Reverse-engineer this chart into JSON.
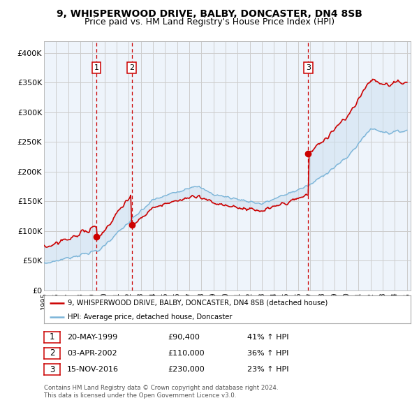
{
  "title": "9, WHISPERWOOD DRIVE, BALBY, DONCASTER, DN4 8SB",
  "subtitle": "Price paid vs. HM Land Registry's House Price Index (HPI)",
  "title_fontsize": 10,
  "subtitle_fontsize": 9,
  "ylim": [
    0,
    420000
  ],
  "yticks": [
    0,
    50000,
    100000,
    150000,
    200000,
    250000,
    300000,
    350000,
    400000
  ],
  "ytick_labels": [
    "£0",
    "£50K",
    "£100K",
    "£150K",
    "£200K",
    "£250K",
    "£300K",
    "£350K",
    "£400K"
  ],
  "hpi_line_color": "#7ab4d8",
  "price_line_color": "#cc0000",
  "sale_marker_color": "#cc0000",
  "vline_color": "#cc0000",
  "shade_color": "#cce0f0",
  "grid_color": "#cccccc",
  "bg_color": "#eef4fb",
  "sale1_date": "20-MAY-1999",
  "sale1_price": "£90,400",
  "sale1_hpi": "41% ↑ HPI",
  "sale2_date": "03-APR-2002",
  "sale2_price": "£110,000",
  "sale2_hpi": "36% ↑ HPI",
  "sale3_date": "15-NOV-2016",
  "sale3_price": "£230,000",
  "sale3_hpi": "23% ↑ HPI",
  "footer1": "Contains HM Land Registry data © Crown copyright and database right 2024.",
  "footer2": "This data is licensed under the Open Government Licence v3.0."
}
